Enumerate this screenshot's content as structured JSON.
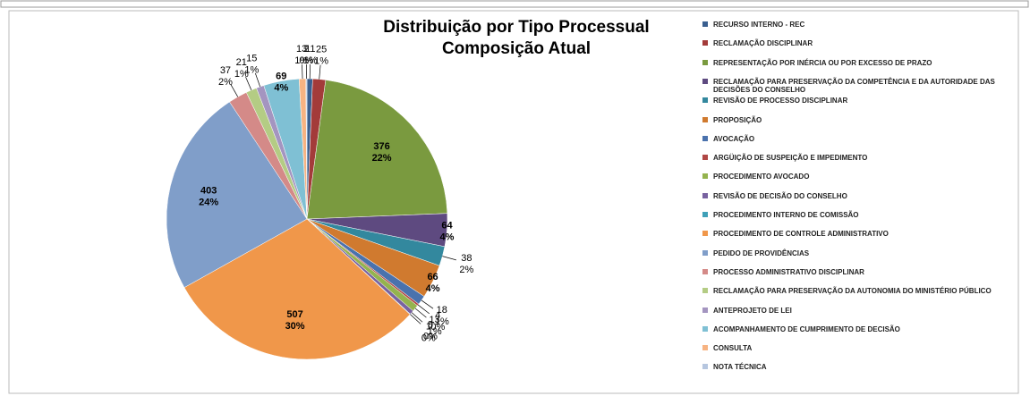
{
  "chart_data": {
    "type": "pie",
    "title": "Distribuição por Tipo Processual",
    "subtitle": "Composição Atual",
    "categories": [
      "RECURSO INTERNO - REC",
      "RECLAMAÇÃO DISCIPLINAR",
      "REPRESENTAÇÃO POR INÉRCIA OU POR EXCESSO DE PRAZO",
      "RECLAMAÇÃO PARA PRESERVAÇÃO DA COMPETÊNCIA E DA AUTORIDADE DAS DECISÕES DO CONSELHO",
      "REVISÃO DE PROCESSO DISCIPLINAR",
      "PROPOSIÇÃO",
      "AVOCAÇÃO",
      "ARGÜIÇÃO DE SUSPEIÇÃO E IMPEDIMENTO",
      "PROCEDIMENTO AVOCADO",
      "REVISÃO DE DECISÃO DO CONSELHO",
      "PROCEDIMENTO INTERNO DE COMISSÃO",
      "PROCEDIMENTO DE CONTROLE ADMINISTRATIVO",
      "PEDIDO DE PROVIDÊNCIAS",
      "PROCESSO ADMINISTRATIVO DISCIPLINAR",
      "RECLAMAÇÃO PARA PRESERVAÇÃO DA AUTONOMIA DO MINISTÉRIO PÚBLICO",
      "ANTEPROJETO DE LEI",
      "ACOMPANHAMENTO DE CUMPRIMENTO DE DECISÃO",
      "CONSULTA",
      "NOTA TÉCNICA"
    ],
    "values": [
      11,
      25,
      376,
      64,
      38,
      66,
      18,
      4,
      13,
      8,
      1,
      507,
      403,
      37,
      21,
      15,
      69,
      13,
      2
    ],
    "percent_labels": [
      "1%",
      "1%",
      "22%",
      "4%",
      "2%",
      "4%",
      "1%",
      "0%",
      "1%",
      "0%",
      "0%",
      "30%",
      "24%",
      "2%",
      "1%",
      "1%",
      "4%",
      "1%",
      "0%"
    ],
    "colors": [
      "#3a5f8f",
      "#a33b3a",
      "#7a9a3f",
      "#5e4a80",
      "#33889e",
      "#d07a2f",
      "#4a72ad",
      "#b04745",
      "#94b34e",
      "#7862a0",
      "#3fa0b8",
      "#f0974a",
      "#809ec9",
      "#d48a88",
      "#b4cc84",
      "#a495c0",
      "#7fc0d4",
      "#f7b382",
      "#b6c6df"
    ]
  }
}
